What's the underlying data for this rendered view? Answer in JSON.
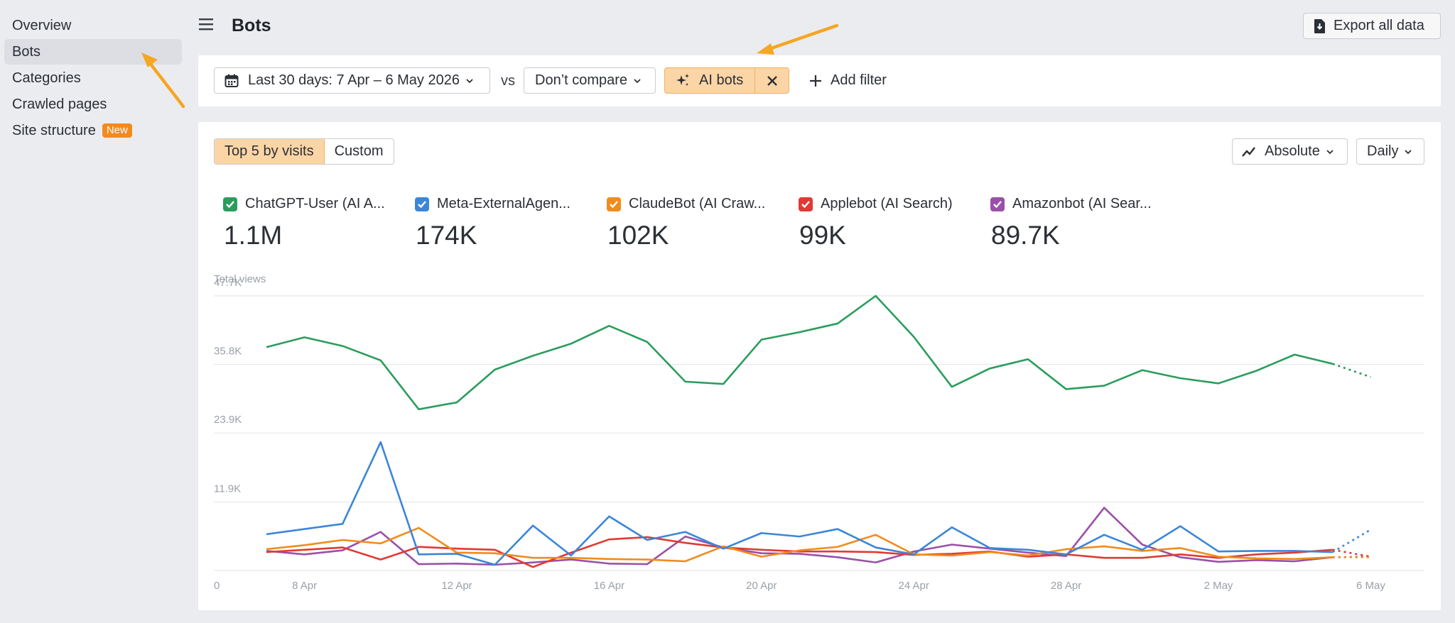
{
  "sidebar": {
    "items": [
      {
        "label": "Overview"
      },
      {
        "label": "Bots"
      },
      {
        "label": "Categories"
      },
      {
        "label": "Crawled pages"
      },
      {
        "label": "Site structure",
        "badge": "New"
      }
    ]
  },
  "header": {
    "title": "Bots",
    "export_label": "Export all data"
  },
  "filters": {
    "date_range": "Last 30 days: 7 Apr – 6 May 2026",
    "vs": "vs",
    "compare": "Don’t compare",
    "active_filter": "AI bots",
    "add_filter": "Add filter"
  },
  "chart_controls": {
    "top5": "Top 5 by visits",
    "custom": "Custom",
    "mode": "Absolute",
    "interval": "Daily"
  },
  "legend": [
    {
      "name": "ChatGPT-User (AI A...",
      "value": "1.1M",
      "color": "#2a9d5c"
    },
    {
      "name": "Meta-ExternalAgen...",
      "value": "174K",
      "color": "#3b86d8"
    },
    {
      "name": "ClaudeBot (AI Craw...",
      "value": "102K",
      "color": "#f08c1c"
    },
    {
      "name": "Applebot (AI Search)",
      "value": "99K",
      "color": "#e03a33"
    },
    {
      "name": "Amazonbot (AI Sear...",
      "value": "89.7K",
      "color": "#9b4fa8"
    }
  ],
  "chart_data": {
    "type": "line",
    "title": "",
    "ylabel": "Total views",
    "ylim": [
      0,
      47700
    ],
    "y_ticks": [
      "0",
      "11.9K",
      "23.9K",
      "35.8K",
      "47.7K"
    ],
    "y_tick_values": [
      0,
      11900,
      23900,
      35800,
      47700
    ],
    "x_ticks": [
      "8 Apr",
      "12 Apr",
      "16 Apr",
      "20 Apr",
      "24 Apr",
      "28 Apr",
      "2 May",
      "6 May"
    ],
    "x_tick_days": [
      1,
      5,
      9,
      13,
      17,
      21,
      25,
      29
    ],
    "x": [
      "7 Apr",
      "8 Apr",
      "9 Apr",
      "10 Apr",
      "11 Apr",
      "12 Apr",
      "13 Apr",
      "14 Apr",
      "15 Apr",
      "16 Apr",
      "17 Apr",
      "18 Apr",
      "19 Apr",
      "20 Apr",
      "21 Apr",
      "22 Apr",
      "23 Apr",
      "24 Apr",
      "25 Apr",
      "26 Apr",
      "27 Apr",
      "28 Apr",
      "29 Apr",
      "30 Apr",
      "1 May",
      "2 May",
      "3 May",
      "4 May",
      "5 May",
      "6 May"
    ],
    "projected_from_index": 28,
    "series": [
      {
        "name": "ChatGPT-User (AI A...",
        "color": "#2a9d5c",
        "values": [
          38800,
          40500,
          39000,
          36500,
          28000,
          29200,
          34900,
          37300,
          39400,
          42500,
          39700,
          32800,
          32400,
          40100,
          41400,
          42900,
          47700,
          40600,
          31900,
          35100,
          36700,
          31500,
          32100,
          34800,
          33400,
          32500,
          34700,
          37500,
          35900,
          33600
        ]
      },
      {
        "name": "Meta-ExternalAgen...",
        "color": "#3b86d8",
        "values": [
          6300,
          7200,
          8100,
          22300,
          2800,
          2900,
          1000,
          7800,
          2600,
          9400,
          5300,
          6700,
          3800,
          6500,
          5900,
          7200,
          4000,
          2800,
          7500,
          3900,
          3600,
          2800,
          6200,
          3600,
          7700,
          3300,
          3400,
          3400,
          3200,
          7100
        ]
      },
      {
        "name": "ClaudeBot (AI Craw...",
        "color": "#f08c1c",
        "values": [
          3700,
          4400,
          5300,
          4700,
          7400,
          3100,
          3000,
          2200,
          2200,
          2000,
          1900,
          1600,
          4200,
          2400,
          3500,
          4100,
          6200,
          2800,
          2600,
          3200,
          2600,
          3700,
          4200,
          3400,
          3900,
          2400,
          2100,
          2000,
          2300,
          2300
        ]
      },
      {
        "name": "Applebot (AI Search)",
        "color": "#e03a33",
        "values": [
          3200,
          3600,
          4000,
          1900,
          4100,
          3800,
          3600,
          600,
          3100,
          5400,
          5800,
          4800,
          4000,
          3600,
          3300,
          3300,
          3200,
          2700,
          2900,
          3300,
          2400,
          2800,
          2200,
          2200,
          2800,
          2200,
          2800,
          3100,
          3600,
          2400
        ]
      },
      {
        "name": "Amazonbot (AI Sear...",
        "color": "#9b4fa8",
        "values": [
          3400,
          2800,
          3500,
          6700,
          1100,
          1200,
          1000,
          1400,
          1900,
          1200,
          1100,
          5900,
          4000,
          3000,
          2900,
          2300,
          1400,
          3300,
          4500,
          3800,
          3100,
          2500,
          10900,
          4500,
          2300,
          1500,
          1800,
          1600,
          2300,
          2400
        ]
      }
    ]
  }
}
